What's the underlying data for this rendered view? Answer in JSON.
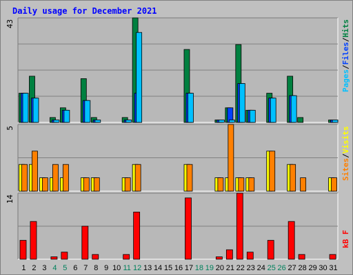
{
  "title": "Daily usage for December 2021",
  "colors": {
    "title": "#0000ff",
    "hits": "#008040",
    "files": "#0040ff",
    "pages": "#00c0ff",
    "visits": "#ffff00",
    "sites": "#ff8000",
    "kbytes": "#ff0000",
    "day_label": "#000000",
    "weekend_label": "#00805c",
    "background": "#c0c0c0",
    "panel": "#b8b8b8",
    "gridline": "#808080"
  },
  "chart_data": [
    {
      "type": "bar",
      "panel": "hits-files-pages",
      "ymax_label": "43",
      "ylim": [
        0,
        43
      ],
      "legend": [
        {
          "key": "pages",
          "label": "Pages",
          "color": "#00c0ff"
        },
        {
          "key": "files",
          "label": "Files",
          "color": "#0040ff"
        },
        {
          "key": "hits",
          "label": "Hits",
          "color": "#008040"
        }
      ],
      "legend_separator": "/",
      "categories": [
        "1",
        "2",
        "3",
        "4",
        "5",
        "6",
        "7",
        "8",
        "9",
        "10",
        "11",
        "12",
        "13",
        "14",
        "15",
        "16",
        "17",
        "18",
        "19",
        "20",
        "21",
        "22",
        "23",
        "24",
        "25",
        "26",
        "27",
        "28",
        "29",
        "30",
        "31"
      ],
      "series": [
        {
          "name": "Hits",
          "values": [
            12,
            19,
            0,
            2,
            6,
            0,
            18,
            2,
            0,
            0,
            2,
            43,
            0,
            0,
            0,
            0,
            30,
            0,
            0,
            1,
            6,
            32,
            5,
            0,
            12,
            0,
            19,
            2,
            0,
            0,
            1
          ]
        },
        {
          "name": "Files",
          "values": [
            12,
            10,
            0,
            1,
            5,
            0,
            9,
            1,
            0,
            0,
            1,
            12,
            0,
            0,
            0,
            0,
            12,
            0,
            0,
            1,
            6,
            16,
            5,
            0,
            10,
            0,
            11,
            0,
            0,
            0,
            1
          ]
        },
        {
          "name": "Pages",
          "values": [
            12,
            10,
            0,
            1,
            5,
            0,
            9,
            1,
            0,
            0,
            1,
            37,
            0,
            0,
            0,
            0,
            12,
            0,
            0,
            1,
            1,
            16,
            5,
            0,
            10,
            0,
            11,
            0,
            0,
            0,
            1
          ]
        }
      ]
    },
    {
      "type": "bar",
      "panel": "visits-sites",
      "ymax_label": "5",
      "ylim": [
        0,
        5
      ],
      "legend": [
        {
          "key": "sites",
          "label": "Sites",
          "color": "#ff8000"
        },
        {
          "key": "visits",
          "label": "Visits",
          "color": "#ffff00"
        }
      ],
      "legend_separator": "/",
      "categories": [
        "1",
        "2",
        "3",
        "4",
        "5",
        "6",
        "7",
        "8",
        "9",
        "10",
        "11",
        "12",
        "13",
        "14",
        "15",
        "16",
        "17",
        "18",
        "19",
        "20",
        "21",
        "22",
        "23",
        "24",
        "25",
        "26",
        "27",
        "28",
        "29",
        "30",
        "31"
      ],
      "series": [
        {
          "name": "Visits",
          "values": [
            2,
            2,
            1,
            1,
            1,
            0,
            1,
            1,
            0,
            0,
            1,
            2,
            0,
            0,
            0,
            0,
            2,
            0,
            0,
            1,
            1,
            1,
            1,
            0,
            3,
            0,
            2,
            0,
            0,
            0,
            1
          ]
        },
        {
          "name": "Sites",
          "values": [
            2,
            3,
            1,
            2,
            2,
            0,
            1,
            1,
            0,
            0,
            1,
            2,
            0,
            0,
            0,
            0,
            2,
            0,
            0,
            1,
            5,
            1,
            1,
            0,
            3,
            0,
            2,
            1,
            0,
            0,
            1
          ]
        }
      ]
    },
    {
      "type": "bar",
      "panel": "kbytes",
      "ymax_label": "14",
      "ylim": [
        0,
        14
      ],
      "legend": [
        {
          "key": "kbytes",
          "label": "kB F",
          "color": "#ff0000"
        }
      ],
      "categories": [
        "1",
        "2",
        "3",
        "4",
        "5",
        "6",
        "7",
        "8",
        "9",
        "10",
        "11",
        "12",
        "13",
        "14",
        "15",
        "16",
        "17",
        "18",
        "19",
        "20",
        "21",
        "22",
        "23",
        "24",
        "25",
        "26",
        "27",
        "28",
        "29",
        "30",
        "31"
      ],
      "series": [
        {
          "name": "kB F",
          "values": [
            4,
            8,
            0,
            0.5,
            1.5,
            0,
            7,
            1,
            0,
            0,
            1,
            10,
            0,
            0,
            0,
            0,
            13,
            0,
            0,
            0.5,
            2,
            14,
            1.5,
            0,
            4,
            0,
            8,
            1,
            0,
            0,
            1
          ]
        }
      ]
    }
  ],
  "weekend_days": [
    "4",
    "5",
    "11",
    "12",
    "18",
    "19",
    "25",
    "26"
  ]
}
